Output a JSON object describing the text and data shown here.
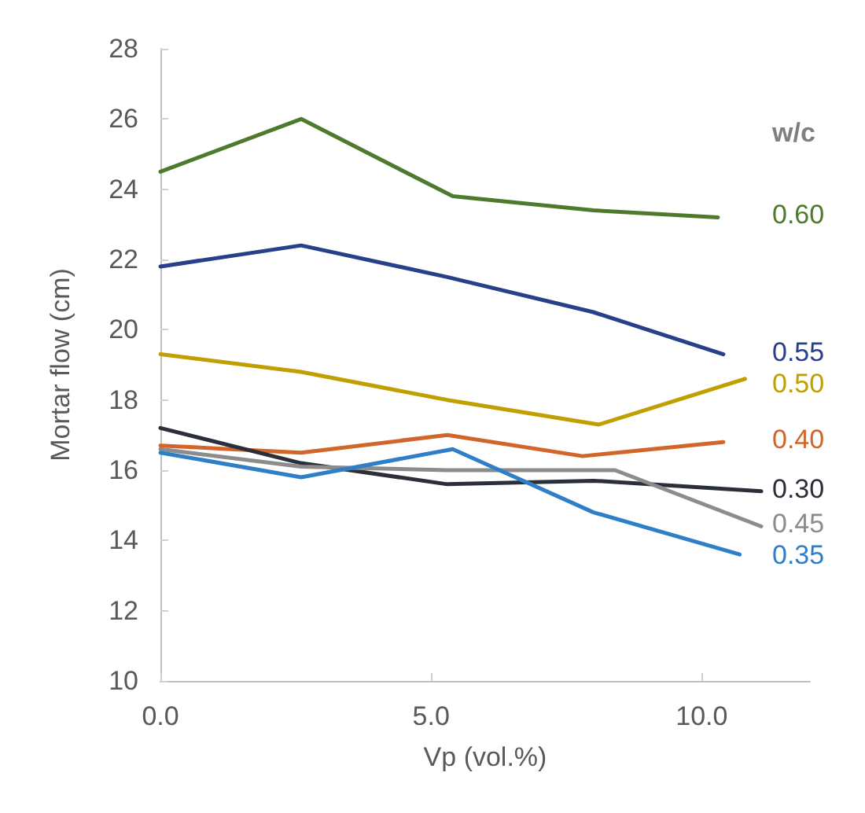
{
  "chart_data": {
    "type": "line",
    "xlabel": "Vp (vol.%)",
    "ylabel": "Mortar flow (cm)",
    "legend_title": "w/c",
    "xlim": [
      0,
      12
    ],
    "xticks": [
      {
        "value": 0,
        "label": "0.0"
      },
      {
        "value": 5,
        "label": "5.0"
      },
      {
        "value": 10,
        "label": "10.0"
      }
    ],
    "ylim": [
      10,
      28
    ],
    "yticks": [
      10,
      12,
      14,
      16,
      18,
      20,
      22,
      24,
      26,
      28
    ],
    "grid": false,
    "marker": "none",
    "line_style": "solid",
    "series": [
      {
        "name": "0.60",
        "color": "#4e7a2e",
        "x": [
          0,
          2.6,
          5.4,
          8.0,
          10.3
        ],
        "values": [
          24.5,
          26.0,
          23.8,
          23.4,
          23.2
        ]
      },
      {
        "name": "0.55",
        "color": "#283f8a",
        "x": [
          0,
          2.6,
          5.3,
          8.0,
          10.4
        ],
        "values": [
          21.8,
          22.4,
          21.5,
          20.5,
          19.3
        ]
      },
      {
        "name": "0.50",
        "color": "#bfa000",
        "x": [
          0,
          2.6,
          5.3,
          8.1,
          10.8
        ],
        "values": [
          19.3,
          18.8,
          18.0,
          17.3,
          18.6
        ]
      },
      {
        "name": "0.40",
        "color": "#d2652a",
        "x": [
          0,
          2.6,
          5.3,
          7.8,
          10.4
        ],
        "values": [
          16.7,
          16.5,
          17.0,
          16.4,
          16.8
        ]
      },
      {
        "name": "0.30",
        "color": "#2a2f3a",
        "x": [
          0,
          2.6,
          5.3,
          8.0,
          11.1
        ],
        "values": [
          17.2,
          16.2,
          15.6,
          15.7,
          15.4
        ]
      },
      {
        "name": "0.45",
        "color": "#8c8c8c",
        "x": [
          0,
          2.6,
          5.3,
          8.4,
          11.1
        ],
        "values": [
          16.6,
          16.1,
          16.0,
          16.0,
          14.4
        ]
      },
      {
        "name": "0.35",
        "color": "#2f7fc8",
        "x": [
          0,
          2.6,
          5.4,
          8.0,
          10.7
        ],
        "values": [
          16.5,
          15.8,
          16.6,
          14.8,
          13.6
        ]
      }
    ]
  }
}
